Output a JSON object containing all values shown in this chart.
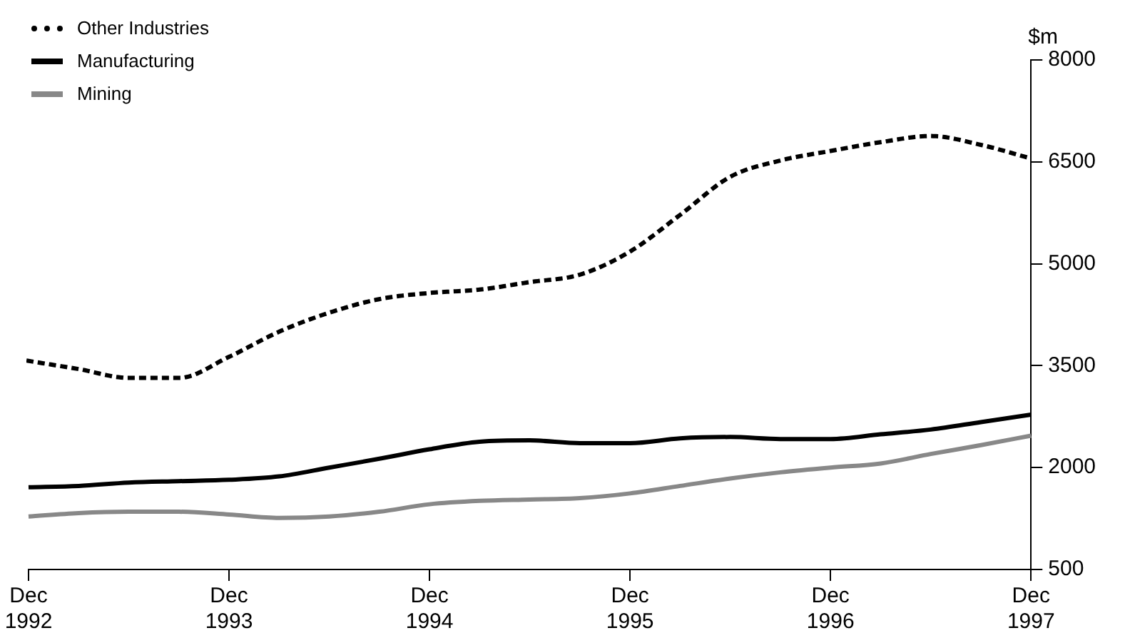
{
  "chart_data": {
    "type": "line",
    "ylabel": "$m",
    "categories": [
      "Dec 1992",
      null,
      null,
      null,
      "Dec 1993",
      null,
      null,
      null,
      "Dec 1994",
      null,
      null,
      null,
      "Dec 1995",
      null,
      null,
      null,
      "Dec 1996",
      null,
      null,
      null,
      "Dec 1997"
    ],
    "series": [
      {
        "name": "Other Industries",
        "color": "#000000",
        "line_style": "dotted",
        "values": [
          3570,
          3450,
          3320,
          3320,
          3630,
          4000,
          4280,
          4480,
          4570,
          4620,
          4730,
          4840,
          5180,
          5720,
          6280,
          6520,
          6660,
          6790,
          6880,
          6750,
          6550
        ]
      },
      {
        "name": "Manufacturing",
        "color": "#000000",
        "line_style": "solid",
        "values": [
          1710,
          1730,
          1780,
          1800,
          1820,
          1870,
          2000,
          2130,
          2270,
          2380,
          2400,
          2360,
          2360,
          2430,
          2450,
          2420,
          2420,
          2490,
          2560,
          2670,
          2780
        ]
      },
      {
        "name": "Mining",
        "color": "#888888",
        "line_style": "solid",
        "values": [
          1280,
          1330,
          1350,
          1350,
          1310,
          1260,
          1280,
          1350,
          1460,
          1510,
          1530,
          1550,
          1620,
          1730,
          1840,
          1930,
          2000,
          2060,
          2200,
          2330,
          2470
        ]
      }
    ],
    "ylim": [
      500,
      8000
    ],
    "yticks": [
      500,
      2000,
      3500,
      5000,
      6500,
      8000
    ],
    "grid": false,
    "legend": "top left",
    "marker": "none"
  }
}
